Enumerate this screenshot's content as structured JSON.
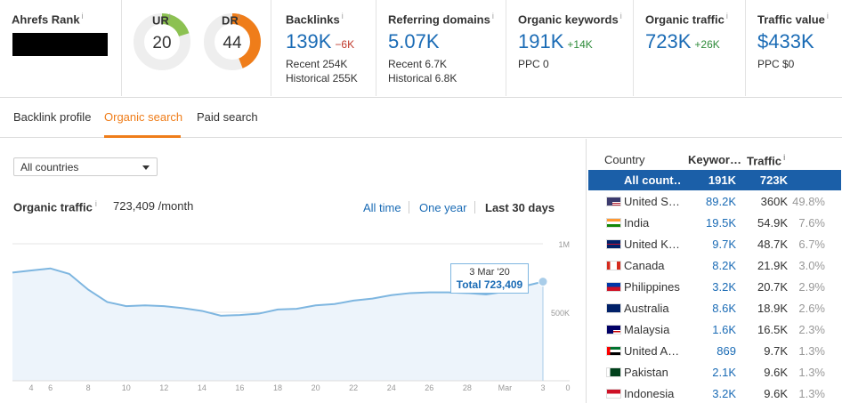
{
  "metrics": {
    "ahrefs_rank": {
      "label": "Ahrefs Rank",
      "info": "i"
    },
    "ur": {
      "label": "UR",
      "info": "i",
      "value": "20",
      "fraction": 0.2,
      "color": "#8cc152"
    },
    "dr": {
      "label": "DR",
      "info": "i",
      "value": "44",
      "fraction": 0.44,
      "color": "#ef7d1a"
    },
    "backlinks": {
      "label": "Backlinks",
      "info": "i",
      "value": "139K",
      "delta": "−6K",
      "sub1": "Recent 254K",
      "sub2": "Historical 255K"
    },
    "referring_domains": {
      "label": "Referring domains",
      "info": "i",
      "value": "5.07K",
      "sub1": "Recent 6.7K",
      "sub2": "Historical 6.8K"
    },
    "organic_keywords": {
      "label": "Organic keywords",
      "info": "i",
      "value": "191K",
      "delta": "+14K",
      "sub1": "PPC 0"
    },
    "organic_traffic": {
      "label": "Organic traffic",
      "info": "i",
      "value": "723K",
      "delta": "+26K"
    },
    "traffic_value": {
      "label": "Traffic value",
      "info": "i",
      "value": "$433K",
      "sub1": "PPC $0"
    }
  },
  "tabs": [
    {
      "label": "Backlink profile"
    },
    {
      "label": "Organic search"
    },
    {
      "label": "Paid search"
    }
  ],
  "country_select": {
    "value": "All countries"
  },
  "organic_traffic_panel": {
    "title": "Organic traffic",
    "info": "i",
    "value": "723,409 /month",
    "ranges": [
      "All time",
      "One year",
      "Last 30 days"
    ],
    "tooltip": {
      "date": "3 Mar '20",
      "total": "Total 723,409"
    }
  },
  "chart_data": {
    "type": "area",
    "x": [
      4,
      5,
      6,
      7,
      8,
      9,
      10,
      11,
      12,
      13,
      14,
      15,
      16,
      17,
      18,
      19,
      20,
      21,
      22,
      23,
      24,
      25,
      26,
      27,
      28,
      29,
      1,
      2,
      3
    ],
    "x_tick_labels": [
      "4",
      "6",
      "8",
      "10",
      "12",
      "14",
      "16",
      "18",
      "20",
      "22",
      "24",
      "26",
      "28",
      "Mar",
      "3"
    ],
    "y": [
      790000,
      805000,
      820000,
      780000,
      665000,
      575000,
      545000,
      550000,
      545000,
      530000,
      510000,
      475000,
      480000,
      490000,
      520000,
      525000,
      550000,
      560000,
      585000,
      600000,
      625000,
      640000,
      645000,
      645000,
      640000,
      630000,
      650000,
      690000,
      723409
    ],
    "y_ticks": [
      "1M",
      "500K",
      "0"
    ],
    "ylim": [
      0,
      1000000
    ],
    "color": "#7eb6e0",
    "grid": true,
    "legend": "none"
  },
  "country_table": {
    "headers": {
      "country": "Country",
      "keywords": "Keywor…",
      "traffic": "Traffic",
      "info": "i"
    },
    "rows": [
      {
        "flag": "all",
        "name": "All count…",
        "keywords": "191K",
        "traffic": "723K",
        "pct": "",
        "selected": true
      },
      {
        "flag": "us",
        "name": "United S…",
        "keywords": "89.2K",
        "traffic": "360K",
        "pct": "49.8%"
      },
      {
        "flag": "in",
        "name": "India",
        "keywords": "19.5K",
        "traffic": "54.9K",
        "pct": "7.6%"
      },
      {
        "flag": "gb",
        "name": "United K…",
        "keywords": "9.7K",
        "traffic": "48.7K",
        "pct": "6.7%"
      },
      {
        "flag": "ca",
        "name": "Canada",
        "keywords": "8.2K",
        "traffic": "21.9K",
        "pct": "3.0%"
      },
      {
        "flag": "ph",
        "name": "Philippines",
        "keywords": "3.2K",
        "traffic": "20.7K",
        "pct": "2.9%"
      },
      {
        "flag": "au",
        "name": "Australia",
        "keywords": "8.6K",
        "traffic": "18.9K",
        "pct": "2.6%"
      },
      {
        "flag": "my",
        "name": "Malaysia",
        "keywords": "1.6K",
        "traffic": "16.5K",
        "pct": "2.3%"
      },
      {
        "flag": "ae",
        "name": "United A…",
        "keywords": "869",
        "traffic": "9.7K",
        "pct": "1.3%"
      },
      {
        "flag": "pk",
        "name": "Pakistan",
        "keywords": "2.1K",
        "traffic": "9.6K",
        "pct": "1.3%"
      },
      {
        "flag": "id",
        "name": "Indonesia",
        "keywords": "3.2K",
        "traffic": "9.6K",
        "pct": "1.3%"
      }
    ]
  }
}
